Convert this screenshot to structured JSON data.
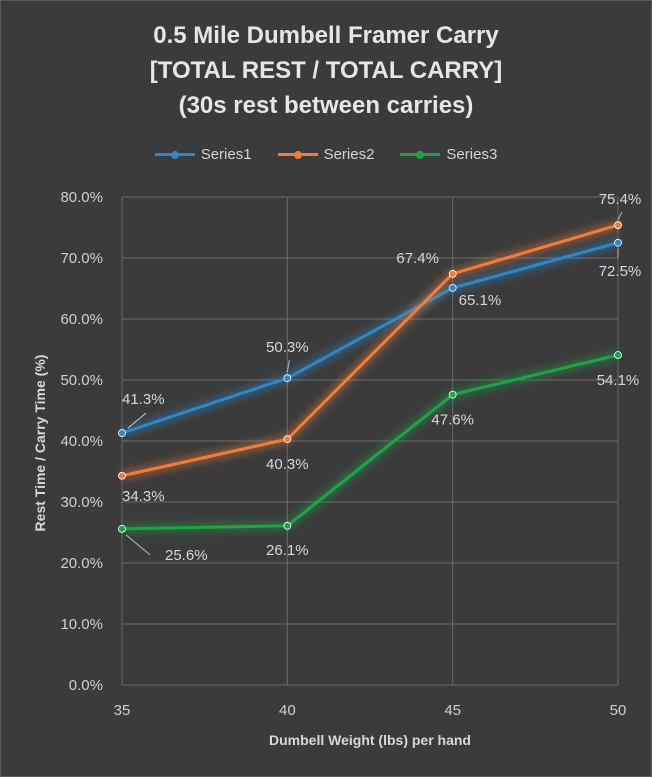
{
  "chart_data": {
    "type": "line",
    "title_lines": [
      "0.5 Mile Dumbell Framer Carry",
      "[TOTAL REST / TOTAL CARRY]",
      "(30s rest between carries)"
    ],
    "xlabel": "Dumbell Weight (lbs) per hand",
    "ylabel": "Rest Time / Carry Time (%)",
    "x": [
      35,
      40,
      45,
      50
    ],
    "x_tick_labels": [
      "35",
      "40",
      "45",
      "50"
    ],
    "ylim": [
      0,
      0.8
    ],
    "y_ticks": [
      0,
      0.1,
      0.2,
      0.3,
      0.4,
      0.5,
      0.6,
      0.7,
      0.8
    ],
    "y_tick_labels": [
      "0.0%",
      "10.0%",
      "20.0%",
      "30.0%",
      "40.0%",
      "50.0%",
      "60.0%",
      "70.0%",
      "80.0%"
    ],
    "grid": true,
    "legend_position": "top",
    "series": [
      {
        "name": "Series1",
        "color": "#2f86c8",
        "values": [
          0.413,
          0.503,
          0.651,
          0.725
        ],
        "labels": [
          "41.3%",
          "50.3%",
          "65.1%",
          "72.5%"
        ]
      },
      {
        "name": "Series2",
        "color": "#f07c3c",
        "values": [
          0.343,
          0.403,
          0.674,
          0.754
        ],
        "labels": [
          "34.3%",
          "40.3%",
          "67.4%",
          "75.4%"
        ]
      },
      {
        "name": "Series3",
        "color": "#1ea34a",
        "values": [
          0.256,
          0.261,
          0.476,
          0.541
        ],
        "labels": [
          "25.6%",
          "26.1%",
          "47.6%",
          "54.1%"
        ]
      }
    ]
  }
}
